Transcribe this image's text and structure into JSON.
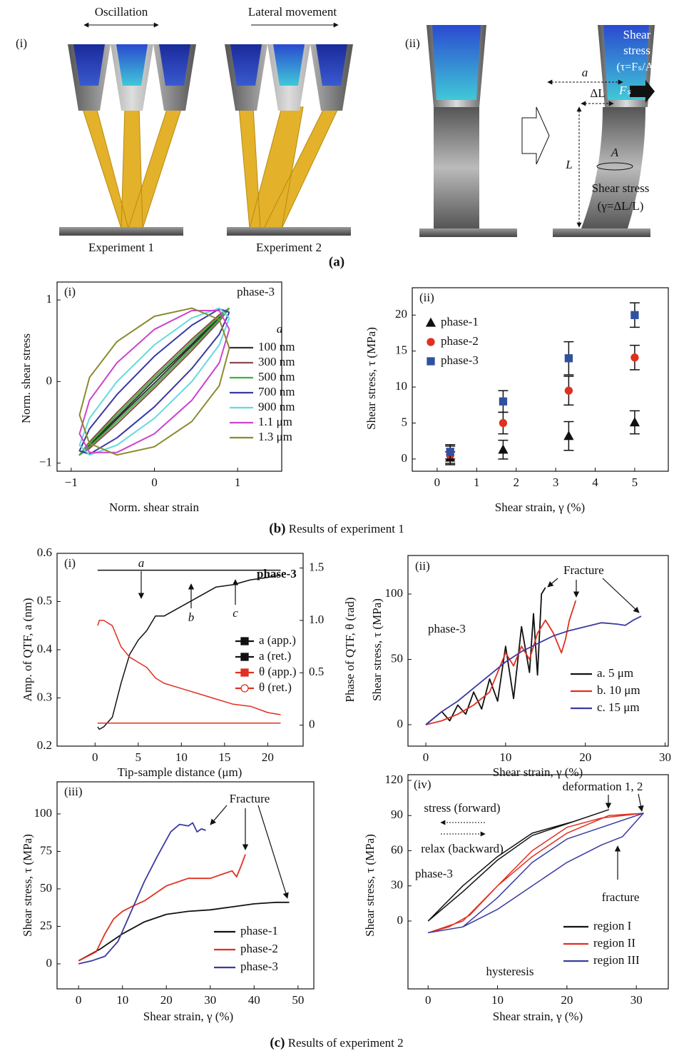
{
  "figure": {
    "panel_a": {
      "label_i": "(i)",
      "oscillation": "Oscillation",
      "lateral": "Lateral movement",
      "exp1": "Experiment 1",
      "exp2": "Experiment 2",
      "label_ii": "(ii)",
      "shear": "Shear",
      "stress": "stress",
      "tau_formula": "(τ=Fₛ/A)",
      "a": "a",
      "delta_l": "ΔL",
      "fs": "Fₛ",
      "l": "L",
      "area": "A",
      "shear_stress_bottom": "Shear stress",
      "gamma_formula": "(γ=ΔL/L)",
      "caption": "(a)"
    },
    "caption_b": {
      "label": "(b)",
      "text": " Results of experiment 1"
    },
    "caption_c": {
      "label": "(c)",
      "text": " Results of experiment 2"
    }
  },
  "chart_data": [
    {
      "type": "line",
      "panel": "(i)",
      "xlabel": "Norm. shear strain",
      "ylabel": "Norm. shear stress",
      "annotations": [
        "phase-3"
      ],
      "legend_title": "a",
      "x": [
        0.9,
        0.78,
        0.45,
        0,
        -0.45,
        -0.78,
        -0.9,
        -0.78,
        -0.45,
        0,
        0.45,
        0.78,
        0.9
      ],
      "series": [
        {
          "name": "100 nm",
          "color": "#333333",
          "values": [
            0.9,
            0.77,
            0.44,
            -0.02,
            -0.46,
            -0.79,
            -0.9,
            -0.77,
            -0.44,
            0.02,
            0.46,
            0.79,
            0.9
          ]
        },
        {
          "name": "300 nm",
          "color": "#8b4a4a",
          "values": [
            0.9,
            0.74,
            0.38,
            -0.08,
            -0.52,
            -0.82,
            -0.9,
            -0.74,
            -0.38,
            0.08,
            0.52,
            0.82,
            0.9
          ]
        },
        {
          "name": "500 nm",
          "color": "#3cb33c",
          "values": [
            0.9,
            0.76,
            0.41,
            -0.05,
            -0.49,
            -0.8,
            -0.9,
            -0.76,
            -0.41,
            0.05,
            0.49,
            0.8,
            0.9
          ]
        },
        {
          "name": "700 nm",
          "color": "#3a3aa0",
          "values": [
            0.85,
            0.58,
            0.16,
            -0.31,
            -0.69,
            -0.89,
            -0.85,
            -0.58,
            -0.16,
            0.31,
            0.69,
            0.89,
            0.85
          ]
        },
        {
          "name": "900 nm",
          "color": "#66d9e0",
          "values": [
            0.78,
            0.45,
            0,
            -0.45,
            -0.78,
            -0.9,
            -0.78,
            -0.45,
            0,
            0.45,
            0.78,
            0.9,
            0.78
          ]
        },
        {
          "name": "1.1 μm",
          "color": "#cc44cc",
          "values": [
            0.64,
            0.23,
            -0.23,
            -0.64,
            -0.87,
            -0.87,
            -0.64,
            -0.23,
            0.23,
            0.64,
            0.87,
            0.87,
            0.64
          ]
        },
        {
          "name": "1.3 μm",
          "color": "#8b8b2e",
          "values": [
            0.41,
            -0.05,
            -0.49,
            -0.8,
            -0.9,
            -0.76,
            -0.41,
            0.05,
            0.49,
            0.8,
            0.9,
            0.76,
            0.41
          ]
        }
      ],
      "xlim": [
        -1.17,
        1.53
      ],
      "ylim": [
        -1.1,
        1.22
      ],
      "xticks": [
        {
          "value": -1,
          "label": "−1"
        },
        0,
        1
      ],
      "yticks": [
        {
          "value": -1,
          "label": "−1"
        },
        0,
        1
      ]
    },
    {
      "type": "scatter",
      "panel": "(ii)",
      "xlabel": "Shear strain, γ (%)",
      "ylabel": "Shear stress, τ (MPa)",
      "x": [
        0.33,
        1.67,
        3.33,
        5
      ],
      "series": [
        {
          "name": "phase-1",
          "color": "#111111",
          "marker": "triangle",
          "values": [
            0.2,
            1.3,
            3.2,
            5.1
          ],
          "errors": [
            0.8,
            1.3,
            2,
            1.6
          ]
        },
        {
          "name": "phase-2",
          "color": "#e03020",
          "marker": "circle",
          "values": [
            0.5,
            5,
            9.5,
            14.1
          ],
          "errors": [
            1.3,
            1.5,
            2,
            1.7
          ]
        },
        {
          "name": "phase-3",
          "color": "#3050a0",
          "marker": "square",
          "values": [
            1,
            8,
            14,
            20
          ],
          "errors": [
            1,
            1.5,
            2.3,
            1.7
          ]
        }
      ],
      "xlim": [
        -0.63,
        5.85
      ],
      "ylim": [
        -1.7,
        23.8
      ],
      "xticks": [
        0,
        1,
        2,
        3,
        4,
        5
      ],
      "yticks": [
        0,
        5,
        10,
        15,
        20
      ]
    },
    {
      "type": "line",
      "panel": "(i)",
      "xlabel": "Tip-sample distance (μm)",
      "ylabel": "Amp. of QTF, a (nm)",
      "y2label": "Phase of QTF, θ (rad)",
      "annotations": [
        "a",
        "b",
        "c",
        "phase-3"
      ],
      "x": [
        0.3,
        0.5,
        1,
        2,
        3,
        4,
        5,
        6,
        7,
        8,
        10,
        12,
        14,
        16,
        18,
        20,
        21.5
      ],
      "series": [
        {
          "name": "a (app.)",
          "color": "#111111",
          "marker": "square",
          "filled": true,
          "values": [
            0.24,
            0.235,
            0.24,
            0.26,
            0.33,
            0.39,
            0.42,
            0.44,
            0.47,
            0.47,
            0.49,
            0.51,
            0.53,
            0.535,
            0.545,
            0.55,
            0.555
          ]
        },
        {
          "name": "a (ret.)",
          "color": "#111111",
          "marker": "square",
          "filled": true,
          "values": [
            0.565,
            0.565,
            0.565,
            0.565,
            0.565,
            0.565,
            0.565,
            0.565,
            0.565,
            0.565,
            0.565,
            0.565,
            0.565,
            0.565,
            0.565,
            0.565,
            0.565
          ]
        },
        {
          "name": "θ (app.)",
          "color": "#e03020",
          "marker": "square",
          "filled": true,
          "axis": "y2",
          "values": [
            0.95,
            1,
            1,
            0.95,
            0.75,
            0.65,
            0.6,
            0.55,
            0.45,
            0.4,
            0.35,
            0.3,
            0.25,
            0.2,
            0.18,
            0.12,
            0.1
          ]
        },
        {
          "name": "θ (ret.)",
          "color": "#e03020",
          "marker": "circle",
          "filled": false,
          "axis": "y2",
          "values": [
            0.02,
            0.02,
            0.02,
            0.02,
            0.02,
            0.02,
            0.02,
            0.02,
            0.02,
            0.02,
            0.02,
            0.02,
            0.02,
            0.02,
            0.02,
            0.02,
            0.02
          ]
        }
      ],
      "xlim": [
        -4.4,
        24.1
      ],
      "ylim": [
        0.2,
        0.6
      ],
      "y2lim": [
        -0.2,
        1.64
      ],
      "xticks": [
        0,
        5,
        10,
        15,
        20
      ],
      "yticks": [
        0.2,
        0.3,
        0.4,
        0.5,
        0.6
      ],
      "y2ticks": [
        0,
        0.5,
        {
          "value": 1,
          "label": "1.0"
        },
        1.5
      ]
    },
    {
      "type": "line",
      "panel": "(ii)",
      "xlabel": "Shear strain, γ (%)",
      "ylabel": "Shear stress, τ (MPa)",
      "annotations": [
        "Fracture",
        "phase-3"
      ],
      "series": [
        {
          "name": "a. 5 μm",
          "color": "#111111",
          "x": [
            0,
            1,
            2,
            3,
            4,
            5,
            6,
            7,
            8,
            9,
            10,
            11,
            12,
            13,
            13.5,
            14,
            14.5,
            15
          ],
          "values": [
            0,
            5,
            10,
            3,
            15,
            8,
            25,
            12,
            35,
            18,
            60,
            20,
            75,
            40,
            85,
            38,
            100,
            105
          ]
        },
        {
          "name": "b. 10 μm",
          "color": "#e03020",
          "x": [
            0,
            2,
            4,
            6,
            8,
            10,
            11,
            12,
            13,
            14,
            15,
            16,
            17,
            17.5,
            18,
            18.8
          ],
          "values": [
            0,
            3,
            8,
            15,
            25,
            55,
            45,
            60,
            50,
            70,
            80,
            70,
            55,
            65,
            80,
            95
          ]
        },
        {
          "name": "c. 15 μm",
          "color": "#3a3aa0",
          "x": [
            0,
            2,
            4,
            6,
            8,
            10,
            12,
            14,
            16,
            18,
            20,
            22,
            24,
            25,
            26,
            27
          ],
          "values": [
            0,
            10,
            18,
            28,
            38,
            48,
            56,
            62,
            68,
            72,
            75,
            78,
            77,
            76,
            80,
            83
          ]
        }
      ],
      "xlim": [
        -2.24,
        30.4
      ],
      "ylim": [
        -16.4,
        129.5
      ],
      "xticks": [
        0,
        10,
        20,
        30
      ],
      "yticks": [
        0,
        50,
        100
      ]
    },
    {
      "type": "line",
      "panel": "(iii)",
      "xlabel": "Shear strain, γ (%)",
      "ylabel": "Shear stress, τ  (MPa)",
      "annotations": [
        "Fracture"
      ],
      "series": [
        {
          "name": "phase-1",
          "color": "#111111",
          "x": [
            0,
            5,
            10,
            15,
            20,
            25,
            30,
            35,
            40,
            45,
            48
          ],
          "values": [
            2,
            10,
            20,
            28,
            33,
            35,
            36,
            38,
            40,
            41,
            41
          ]
        },
        {
          "name": "phase-2",
          "color": "#e03020",
          "x": [
            0,
            4,
            6,
            8,
            10,
            12,
            15,
            20,
            25,
            30,
            33,
            35,
            36,
            37,
            38
          ],
          "values": [
            2,
            8,
            20,
            30,
            35,
            38,
            42,
            52,
            57,
            57,
            60,
            62,
            58,
            65,
            73
          ]
        },
        {
          "name": "phase-3",
          "color": "#3a3aa0",
          "x": [
            0,
            3,
            6,
            9,
            12,
            15,
            18,
            21,
            23,
            25,
            26,
            27,
            28,
            29
          ],
          "values": [
            0,
            2,
            5,
            15,
            35,
            55,
            72,
            88,
            93,
            92,
            94,
            88,
            90,
            89
          ]
        }
      ],
      "xlim": [
        -4.9,
        53.6
      ],
      "ylim": [
        -16.7,
        121.4
      ],
      "xticks": [
        0,
        10,
        20,
        30,
        40,
        50
      ],
      "yticks": [
        0,
        25,
        50,
        75,
        100
      ]
    },
    {
      "type": "line",
      "panel": "(iv)",
      "xlabel": "Shear strain, γ (%)",
      "ylabel": "Shear stress, τ (MPa)",
      "annotations": [
        "deformation 1, 2",
        "stress (forward)",
        "relax (backward)",
        "fracture",
        "phase-3",
        "hysteresis"
      ],
      "series": [
        {
          "name": "region I",
          "color": "#111111",
          "x": [
            0,
            5,
            10,
            15,
            21,
            26,
            21,
            15,
            10,
            5,
            0
          ],
          "values": [
            0,
            30,
            55,
            75,
            85,
            95,
            85,
            73,
            52,
            25,
            0
          ]
        },
        {
          "name": "region II",
          "color": "#e03020",
          "x": [
            0,
            3,
            6,
            10,
            15,
            20,
            26,
            31,
            25,
            20,
            15,
            10,
            5,
            0
          ],
          "values": [
            -10,
            -5,
            5,
            30,
            55,
            75,
            90,
            92,
            88,
            80,
            60,
            30,
            0,
            -10
          ]
        },
        {
          "name": "region III",
          "color": "#3a3aa0",
          "x": [
            0,
            5,
            10,
            15,
            20,
            25,
            28,
            31,
            25,
            20,
            15,
            10,
            5,
            0
          ],
          "values": [
            -10,
            -5,
            10,
            30,
            50,
            65,
            72,
            92,
            80,
            70,
            50,
            20,
            -5,
            -10
          ]
        }
      ],
      "xlim": [
        -2.9,
        34.6
      ],
      "ylim": [
        -57.9,
        124.9
      ],
      "xticks": [
        0,
        10,
        20,
        30
      ],
      "yticks": [
        0,
        30,
        60,
        90,
        120
      ]
    }
  ]
}
